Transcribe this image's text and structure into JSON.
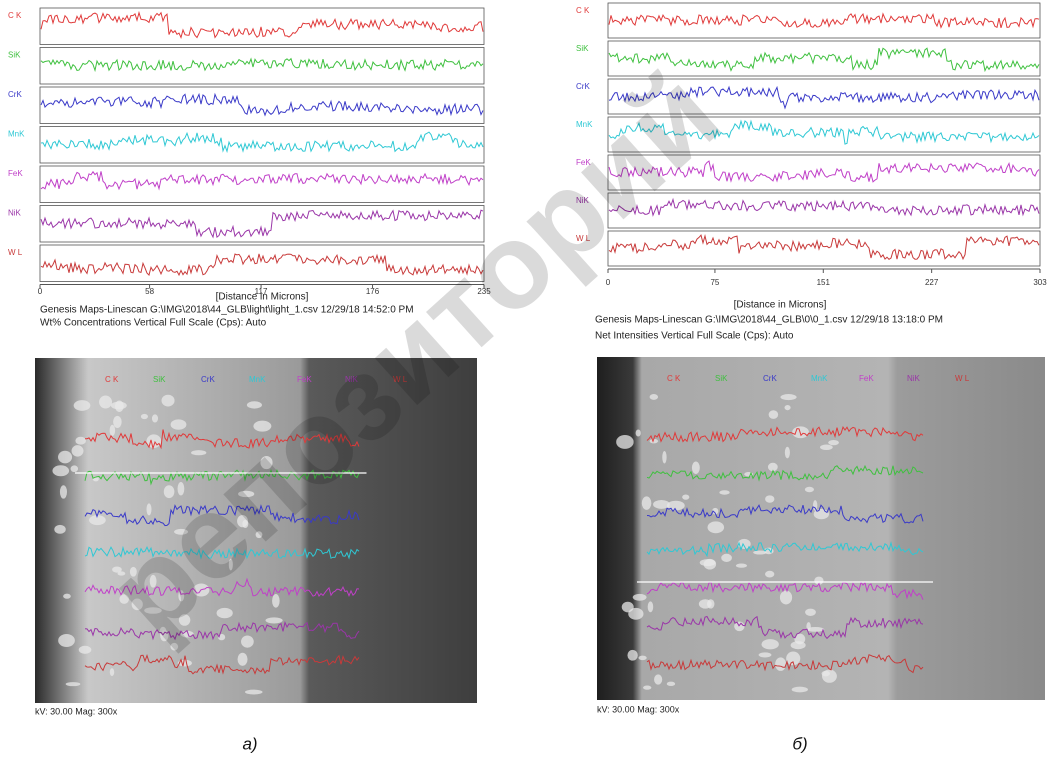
{
  "panels": [
    {
      "chart": {
        "elements": [
          "C K",
          "SiK",
          "CrK",
          "MnK",
          "FeK",
          "NiK",
          "W L"
        ],
        "colors": [
          "#e03a3a",
          "#3fc03f",
          "#3a3ac8",
          "#2fc8d4",
          "#c040c8",
          "#9a36a8",
          "#c83a3a"
        ],
        "xlim": [
          0,
          235
        ],
        "xticks": [
          0,
          58,
          117,
          176,
          235
        ],
        "xlabel": "[Distance in Microns]",
        "info": [
          "Genesis Maps-Linescan G:\\IMG\\2018\\44_GLB\\light\\light_1.csv  12/29/18 14:52:0 PM",
          "Wt% Concentrations   Vertical Full Scale (Cps): Auto"
        ]
      },
      "image": {
        "footer": "kV: 30.00 Mag: 300x"
      },
      "caption": "а)"
    },
    {
      "chart": {
        "elements": [
          "C K",
          "SiK",
          "CrK",
          "MnK",
          "FeK",
          "NiK",
          "W L"
        ],
        "colors": [
          "#e03a3a",
          "#3fc03f",
          "#3a3ac8",
          "#2fc8d4",
          "#c040c8",
          "#9a36a8",
          "#c83a3a"
        ],
        "xlim": [
          0,
          303
        ],
        "xticks": [
          0,
          75,
          151,
          227,
          303
        ],
        "xlabel": "[Distance in Microns]",
        "info": [
          "Genesis Maps-Linescan G:\\IMG\\2018\\44_GLB\\0\\0_1.csv  12/29/18 13:18:0 PM",
          "Net Intensities   Vertical Full Scale (Cps): Auto"
        ]
      },
      "image": {
        "footer": "kV: 30.00 Mag: 300x"
      },
      "caption": "б)"
    }
  ],
  "watermark": "репозиторий"
}
